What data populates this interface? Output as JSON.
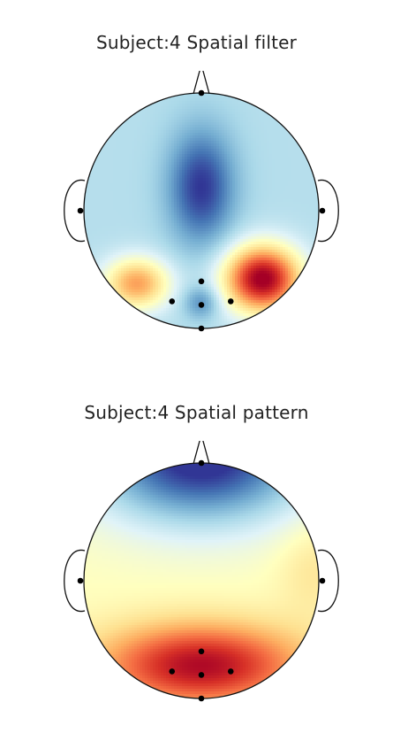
{
  "chart_data": [
    {
      "type": "heatmap",
      "title": "Subject:4 Spatial filter",
      "colormap": [
        "#313695",
        "#4575b4",
        "#74add1",
        "#abd9e9",
        "#e0f3f8",
        "#ffffbf",
        "#fee090",
        "#fdae61",
        "#f46d43",
        "#d73027",
        "#a50026"
      ],
      "sensors": [
        "Fz",
        "T7",
        "T8",
        "Pz",
        "P3",
        "POz",
        "P4",
        "Oz"
      ],
      "field": {
        "baseline": 0.32,
        "blobs": [
          {
            "region": "central",
            "center": [
              0.0,
              0.2
            ],
            "spread": [
              0.28,
              0.48
            ],
            "amplitude": -0.32
          },
          {
            "region": "right-occipital",
            "center": [
              0.52,
              -0.58
            ],
            "spread": [
              0.32,
              0.28
            ],
            "amplitude": 0.7
          },
          {
            "region": "left-occipital",
            "center": [
              -0.55,
              -0.62
            ],
            "spread": [
              0.28,
              0.22
            ],
            "amplitude": 0.4
          },
          {
            "region": "midline-occipital",
            "center": [
              0.0,
              -0.78
            ],
            "spread": [
              0.15,
              0.14
            ],
            "amplitude": -0.18
          }
        ]
      }
    },
    {
      "type": "heatmap",
      "title": "Subject:4 Spatial pattern",
      "colormap": [
        "#313695",
        "#4575b4",
        "#74add1",
        "#abd9e9",
        "#e0f3f8",
        "#ffffbf",
        "#fee090",
        "#fdae61",
        "#f46d43",
        "#d73027",
        "#a50026"
      ],
      "sensors": [
        "Fz",
        "T7",
        "T8",
        "Pz",
        "P3",
        "POz",
        "P4",
        "Oz"
      ],
      "field": {
        "baseline": 0.5,
        "blobs": [
          {
            "region": "frontal",
            "center": [
              0.0,
              1.05
            ],
            "spread": [
              0.9,
              0.55
            ],
            "amplitude": -0.55
          },
          {
            "region": "occipital",
            "center": [
              0.0,
              -0.72
            ],
            "spread": [
              0.85,
              0.35
            ],
            "amplitude": 0.48
          },
          {
            "region": "right-temporal",
            "center": [
              0.95,
              0.1
            ],
            "spread": [
              0.3,
              0.4
            ],
            "amplitude": 0.08
          }
        ]
      }
    }
  ]
}
